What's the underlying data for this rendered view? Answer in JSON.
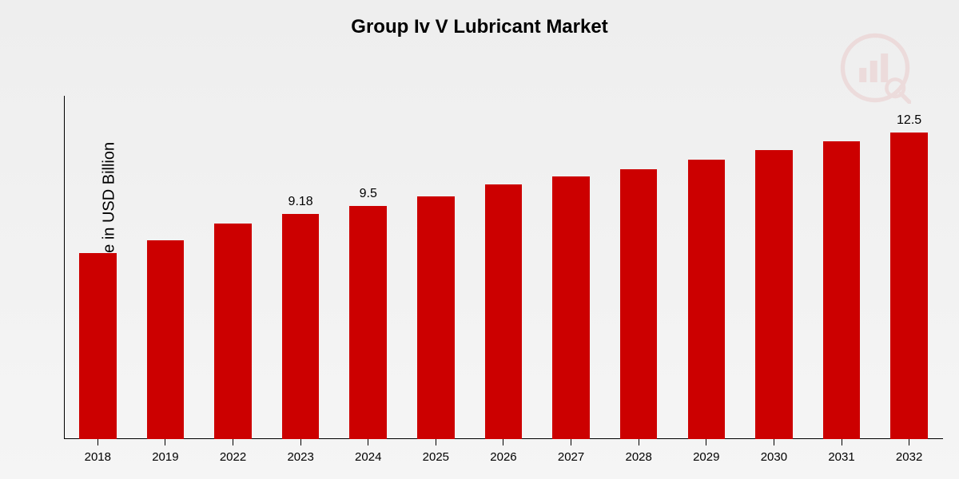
{
  "chart": {
    "type": "bar",
    "title": "Group Iv V Lubricant Market",
    "title_fontsize": 24,
    "ylabel": "Market Value in USD Billion",
    "ylabel_fontsize": 20,
    "categories": [
      "2018",
      "2019",
      "2022",
      "2023",
      "2024",
      "2025",
      "2026",
      "2027",
      "2028",
      "2029",
      "2030",
      "2031",
      "2032"
    ],
    "values": [
      7.6,
      8.1,
      8.8,
      9.18,
      9.5,
      9.9,
      10.4,
      10.7,
      11.0,
      11.4,
      11.8,
      12.15,
      12.5
    ],
    "value_labels": [
      "",
      "",
      "",
      "9.18",
      "9.5",
      "",
      "",
      "",
      "",
      "",
      "",
      "",
      "12.5"
    ],
    "ylim": [
      0,
      14
    ],
    "bar_color": "#cc0000",
    "background_gradient_top": "#eeeeee",
    "background_gradient_bottom": "#f5f5f5",
    "axis_color": "#000000",
    "text_color": "#000000",
    "x_label_fontsize": 15,
    "value_label_fontsize": 16,
    "bar_width_ratio": 0.55,
    "watermark_color": "#cc0000",
    "watermark_opacity": 0.08
  }
}
